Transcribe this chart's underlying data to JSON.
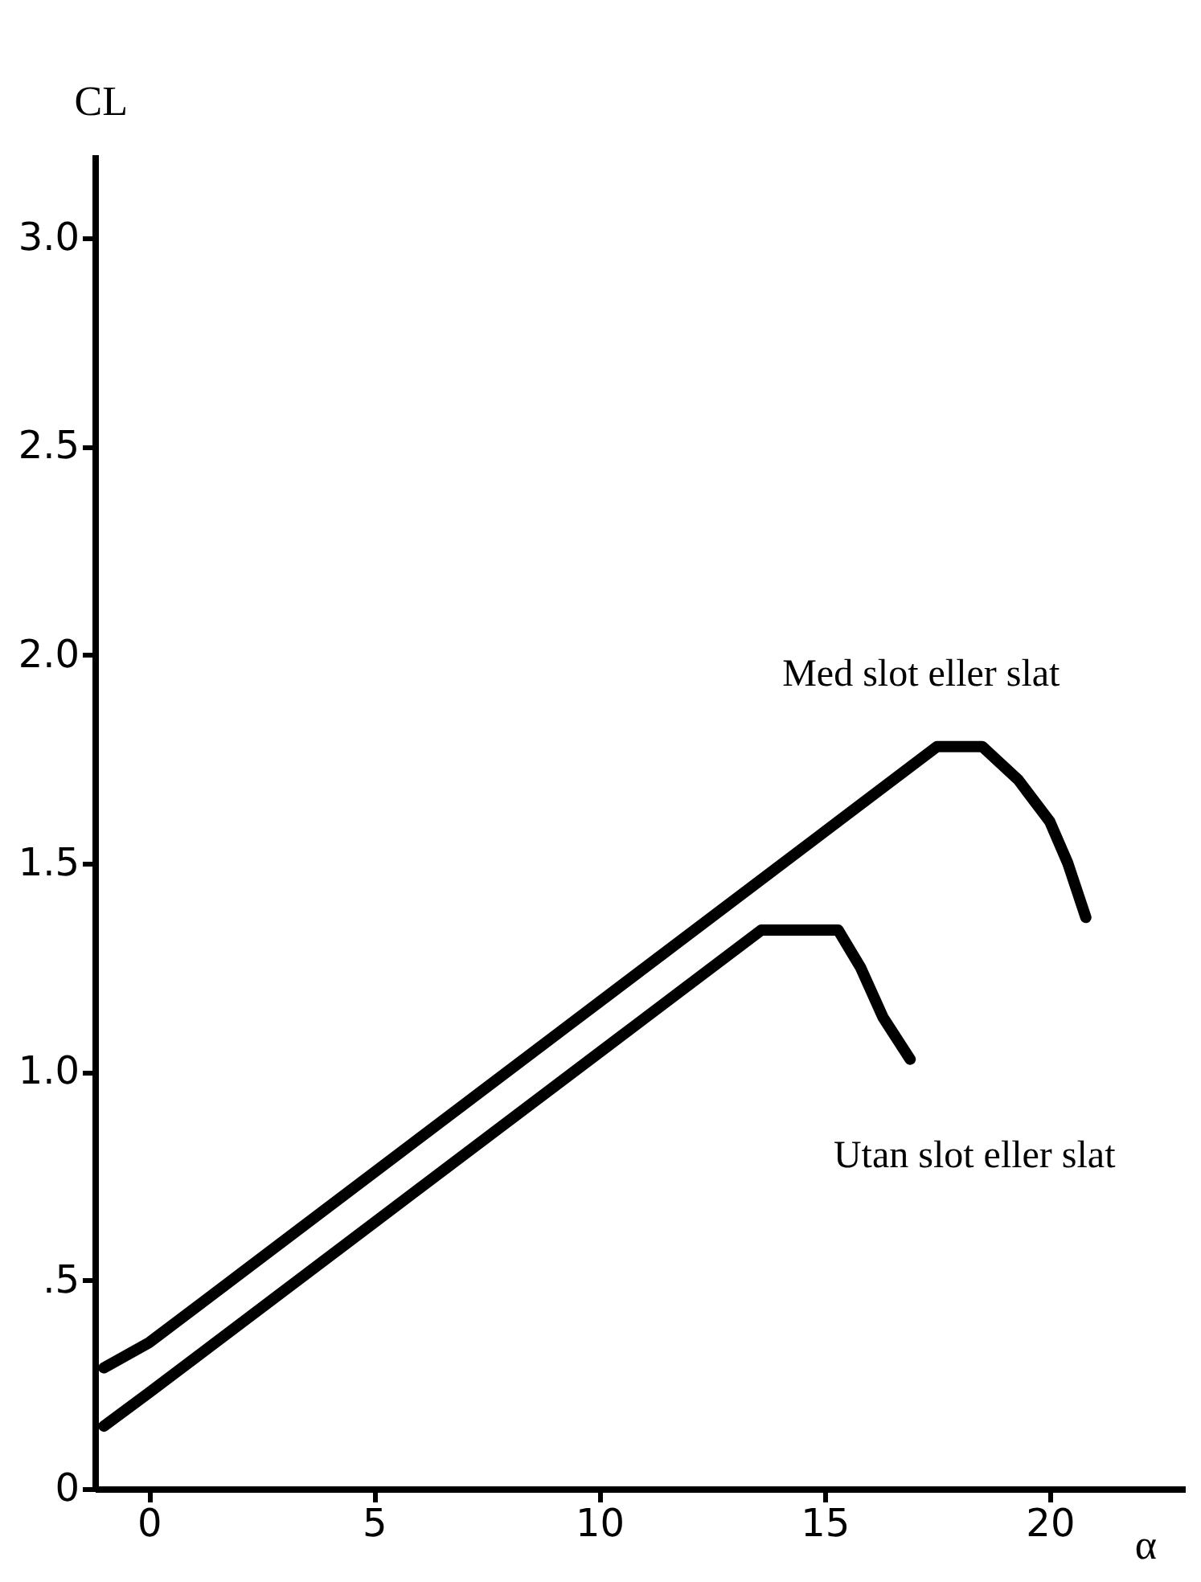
{
  "chart_data": {
    "type": "line",
    "xlabel": "α",
    "ylabel": "CL",
    "xlim": [
      -1.2,
      23
    ],
    "ylim": [
      0,
      3.2
    ],
    "xticks": [
      0,
      5,
      10,
      15,
      20
    ],
    "yticks": [
      0,
      {
        "value": 0.5,
        "label": ".5"
      },
      {
        "value": 1,
        "label": "1.0"
      },
      1.5,
      {
        "value": 2,
        "label": "2.0"
      },
      2.5,
      {
        "value": 3,
        "label": "3.0"
      }
    ],
    "grid": false,
    "marker": "none",
    "line_style": "solid",
    "series": [
      {
        "name": "Med slot eller slat",
        "color": "#000000",
        "x": [
          -1,
          0,
          17.5,
          18.5,
          19.3,
          20,
          20.4,
          20.8
        ],
        "values": [
          0.29,
          0.35,
          1.78,
          1.78,
          1.7,
          1.6,
          1.5,
          1.37
        ]
      },
      {
        "name": "Utan slot eller slat",
        "color": "#000000",
        "x": [
          -1,
          0,
          13.6,
          15.3,
          15.8,
          16.3,
          16.9
        ],
        "values": [
          0.15,
          0.23,
          1.34,
          1.34,
          1.25,
          1.13,
          1.03
        ]
      }
    ]
  }
}
